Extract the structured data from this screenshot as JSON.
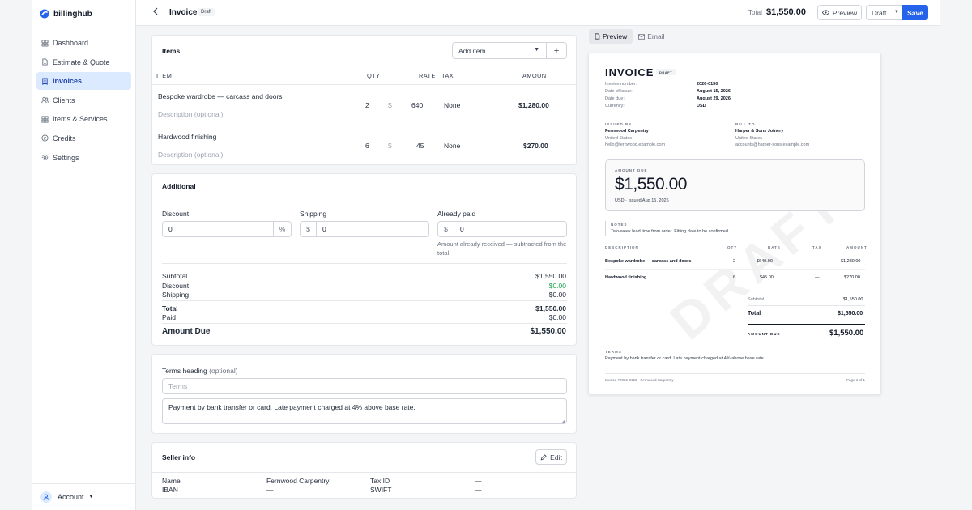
{
  "app": {
    "name": "billinghub"
  },
  "sidebar": {
    "items": [
      {
        "label": "Dashboard",
        "icon": "grid-icon"
      },
      {
        "label": "Estimate & Quote",
        "icon": "document-icon"
      },
      {
        "label": "Invoices",
        "icon": "invoice-icon",
        "active": true
      },
      {
        "label": "Clients",
        "icon": "users-icon"
      },
      {
        "label": "Items & Services",
        "icon": "boxes-icon"
      },
      {
        "label": "Credits",
        "icon": "credit-icon"
      },
      {
        "label": "Settings",
        "icon": "gear-icon"
      }
    ],
    "account_label": "Account"
  },
  "header": {
    "title": "Invoice",
    "status_badge": "Draft",
    "total_label": "Total",
    "total_value": "$1,550.00",
    "preview_label": "Preview",
    "status_select": "Draft",
    "save_label": "Save"
  },
  "items": {
    "heading": "Items",
    "add_placeholder": "Add item...",
    "columns": {
      "item": "ITEM",
      "qty": "QTY",
      "rate": "RATE",
      "tax": "TAX",
      "amount": "AMOUNT"
    },
    "rows": [
      {
        "name": "Bespoke wardrobe — carcass and doors",
        "description": "Description (optional)",
        "qty": "2",
        "currency": "$",
        "rate": "640",
        "tax": "None",
        "amount": "$1,280.00"
      },
      {
        "name": "Hardwood finishing",
        "description": "Description (optional)",
        "qty": "6",
        "currency": "$",
        "rate": "45",
        "tax": "None",
        "amount": "$270.00"
      }
    ]
  },
  "additional": {
    "heading": "Additional",
    "discount_label": "Discount",
    "discount_value": "0",
    "discount_unit": "%",
    "shipping_label": "Shipping",
    "shipping_currency": "$",
    "shipping_value": "0",
    "paid_label": "Already paid",
    "paid_currency": "$",
    "paid_value": "0",
    "paid_help": "Amount already received — subtracted from the total.",
    "summary": {
      "subtotal_label": "Subtotal",
      "subtotal": "$1,550.00",
      "discount_label": "Discount",
      "discount": "$0.00",
      "shipping_label": "Shipping",
      "shipping": "$0.00",
      "total_label": "Total",
      "total": "$1,550.00",
      "paid_label": "Paid",
      "paid": "$0.00",
      "due_label": "Amount Due",
      "due": "$1,550.00"
    }
  },
  "terms": {
    "heading": "Terms heading",
    "heading_optional": "(optional)",
    "placeholder": "Terms",
    "body": "Payment by bank transfer or card. Late payment charged at 4% above base rate."
  },
  "seller": {
    "heading": "Seller info",
    "edit_label": "Edit",
    "name_label": "Name",
    "name": "Fernwood Carpentry",
    "iban_label": "IBAN",
    "iban": "—",
    "tax_label": "Tax ID",
    "tax": "—",
    "swift_label": "SWIFT",
    "swift": "—"
  },
  "preview": {
    "tabs": [
      "Preview",
      "Email"
    ],
    "title": "INVOICE",
    "badge": "DRAFT",
    "meta": [
      {
        "label": "Invoice number:",
        "value": "2026-0150"
      },
      {
        "label": "Date of issue:",
        "value": "August 15, 2026"
      },
      {
        "label": "Date due:",
        "value": "August 29, 2026"
      },
      {
        "label": "Currency:",
        "value": "USD"
      }
    ],
    "issued_by_label": "ISSUED BY",
    "issuer": {
      "name": "Fernwood Carpentry",
      "country": "United States",
      "email": "hello@fernwood.example.com"
    },
    "bill_to_label": "BILL TO",
    "client": {
      "name": "Harper & Sons Joinery",
      "country": "United States",
      "email": "accounts@harper-sons.example.com"
    },
    "amount_due_label": "AMOUNT DUE",
    "amount_due": "$1,550.00",
    "amount_sub": "USD · Issued Aug 15, 2026",
    "notes_label": "NOTES",
    "notes": "Two-week lead time from order. Fitting date to be confirmed.",
    "watermark": "DRAFT",
    "columns": {
      "description": "DESCRIPTION",
      "qty": "QTY",
      "rate": "RATE",
      "tax": "TAX",
      "amount": "AMOUNT"
    },
    "rows": [
      {
        "name": "Bespoke wardrobe — carcass and doors",
        "qty": "2",
        "rate": "$640.00",
        "tax": "—",
        "amount": "$1,280.00"
      },
      {
        "name": "Hardwood finishing",
        "qty": "6",
        "rate": "$45.00",
        "tax": "—",
        "amount": "$270.00"
      }
    ],
    "subtotal_label": "Subtotal",
    "subtotal": "$1,550.00",
    "total_label": "Total",
    "total": "$1,550.00",
    "due_label": "AMOUNT DUE",
    "due": "$1,550.00",
    "terms_label": "TERMS",
    "terms": "Payment by bank transfer or card. Late payment charged at 4% above base rate.",
    "footer_left": "Invoice #2026-0150 · Fernwood Carpentry",
    "footer_right": "Page 1 of 1"
  }
}
